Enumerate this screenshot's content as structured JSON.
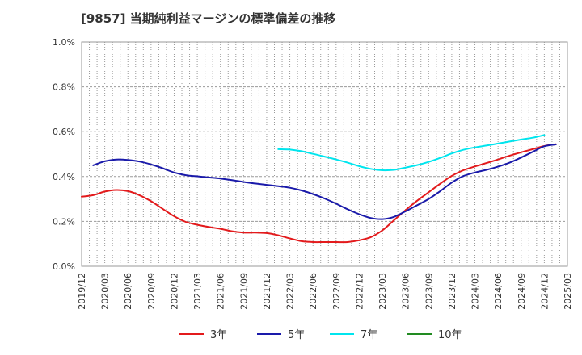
{
  "title": "[9857]  当期純利益マージンの標準偏差の推移",
  "chart_data": {
    "type": "line",
    "title": "[9857]  当期純利益マージンの標準偏差の推移",
    "xlabel": "",
    "ylabel": "",
    "ylim": [
      0,
      1.0
    ],
    "yticks": [
      0,
      0.2,
      0.4,
      0.6,
      0.8,
      1.0
    ],
    "ytick_labels": [
      "0.0%",
      "0.2%",
      "0.4%",
      "0.6%",
      "0.8%",
      "1.0%"
    ],
    "xtick_labels": [
      "2019/12",
      "2020/03",
      "2020/06",
      "2020/09",
      "2020/12",
      "2021/03",
      "2021/06",
      "2021/09",
      "2021/12",
      "2022/03",
      "2022/06",
      "2022/09",
      "2022/12",
      "2023/03",
      "2023/06",
      "2023/09",
      "2023/12",
      "2024/03",
      "2024/06",
      "2024/09",
      "2024/12",
      "2025/03"
    ],
    "grid": true,
    "legend_position": "bottom",
    "series": [
      {
        "name": "3年",
        "color": "#e31a1c",
        "start_index": 0,
        "values": [
          0.31,
          0.317,
          0.333,
          0.34,
          0.335,
          0.317,
          0.29,
          0.256,
          0.223,
          0.198,
          0.185,
          0.175,
          0.167,
          0.156,
          0.15,
          0.15,
          0.148,
          0.138,
          0.124,
          0.112,
          0.108,
          0.108,
          0.108,
          0.108,
          0.116,
          0.13,
          0.16,
          0.205,
          0.25,
          0.292,
          0.33,
          0.368,
          0.403,
          0.428,
          0.445,
          0.46,
          0.476,
          0.493,
          0.508,
          0.522,
          0.536,
          0.544
        ]
      },
      {
        "name": "5年",
        "color": "#1a1aaa",
        "start_index": 1,
        "values": [
          0.45,
          0.468,
          0.476,
          0.474,
          0.467,
          0.454,
          0.437,
          0.418,
          0.406,
          0.401,
          0.396,
          0.391,
          0.384,
          0.376,
          0.369,
          0.363,
          0.357,
          0.35,
          0.338,
          0.322,
          0.302,
          0.279,
          0.254,
          0.232,
          0.215,
          0.21,
          0.22,
          0.245,
          0.272,
          0.3,
          0.335,
          0.373,
          0.402,
          0.418,
          0.43,
          0.444,
          0.462,
          0.485,
          0.51,
          0.535,
          0.543
        ]
      },
      {
        "name": "7年",
        "color": "#00e5ee",
        "start_index": 17,
        "values": [
          0.522,
          0.52,
          0.513,
          0.501,
          0.489,
          0.476,
          0.462,
          0.446,
          0.434,
          0.428,
          0.43,
          0.44,
          0.451,
          0.465,
          0.483,
          0.503,
          0.519,
          0.53,
          0.538,
          0.547,
          0.556,
          0.565,
          0.573,
          0.585
        ]
      },
      {
        "name": "10年",
        "color": "#228b22",
        "start_index": 0,
        "values": []
      }
    ]
  }
}
